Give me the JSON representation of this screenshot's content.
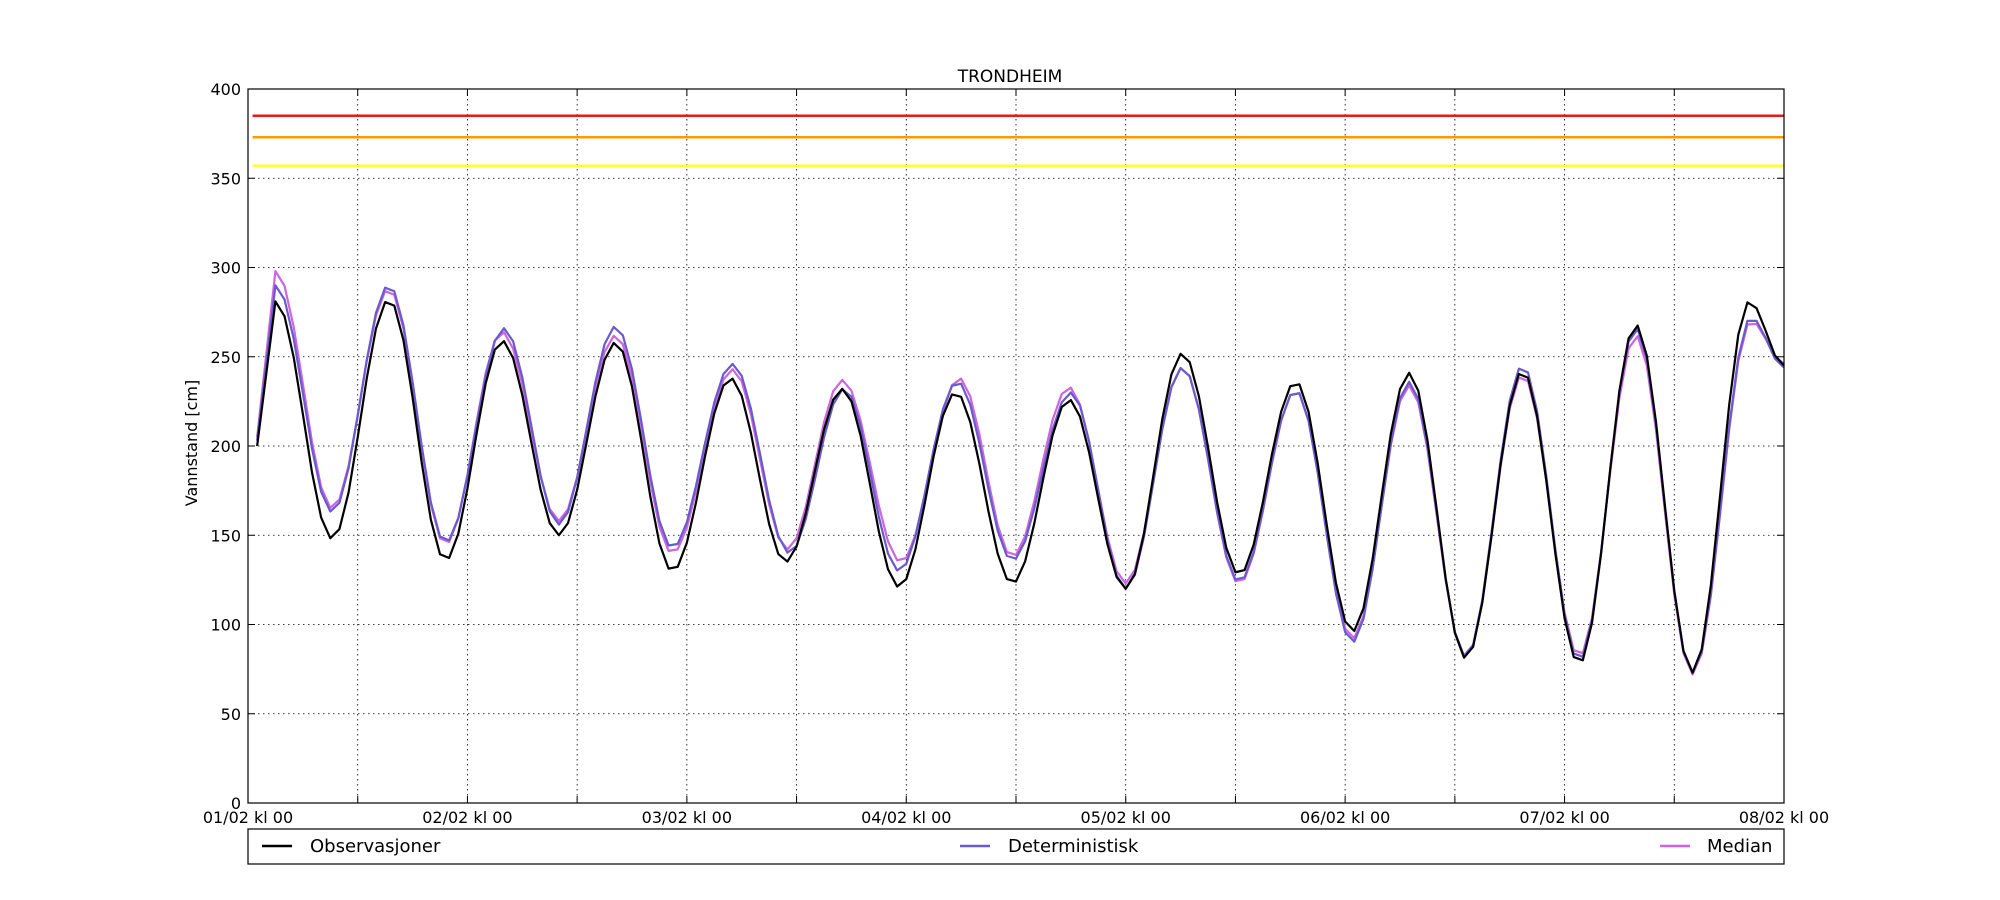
{
  "chart_data": {
    "type": "line",
    "title": "TRONDHEIM",
    "xlabel": "",
    "ylabel": "Vannstand [cm]",
    "xlim": [
      0,
      168
    ],
    "ylim": [
      0,
      400
    ],
    "grid": true,
    "legend_placement": "bottom",
    "x_ticks": [
      {
        "x": 0,
        "label": "01/02 kl 00"
      },
      {
        "x": 24,
        "label": "02/02 kl 00"
      },
      {
        "x": 48,
        "label": "03/02 kl 00"
      },
      {
        "x": 72,
        "label": "04/02 kl 00"
      },
      {
        "x": 96,
        "label": "05/02 kl 00"
      },
      {
        "x": 120,
        "label": "06/02 kl 00"
      },
      {
        "x": 144,
        "label": "07/02 kl 00"
      },
      {
        "x": 168,
        "label": "08/02 kl 00"
      }
    ],
    "x_minor_ticks": [
      12,
      36,
      60,
      84,
      108,
      132,
      156
    ],
    "y_ticks": [
      0,
      50,
      100,
      150,
      200,
      250,
      300,
      350,
      400
    ],
    "thresholds": [
      {
        "value": 385,
        "color": "#e41a1c"
      },
      {
        "value": 373,
        "color": "#ff9900"
      },
      {
        "value": 357,
        "color": "#ffff33"
      }
    ],
    "tide": {
      "x_start": 1,
      "x_end": 168,
      "step": 1,
      "period": 12.42,
      "observations_peaks": [
        {
          "x": 3.0,
          "y": 281
        },
        {
          "x": 9.2,
          "y": 148
        },
        {
          "x": 15.4,
          "y": 282
        },
        {
          "x": 21.6,
          "y": 136
        },
        {
          "x": 27.8,
          "y": 259
        },
        {
          "x": 34.0,
          "y": 150
        },
        {
          "x": 40.2,
          "y": 258
        },
        {
          "x": 46.4,
          "y": 130
        },
        {
          "x": 52.8,
          "y": 238
        },
        {
          "x": 58.8,
          "y": 135
        },
        {
          "x": 65.0,
          "y": 232
        },
        {
          "x": 71.2,
          "y": 121
        },
        {
          "x": 77.4,
          "y": 230
        },
        {
          "x": 83.6,
          "y": 123
        },
        {
          "x": 89.8,
          "y": 226
        },
        {
          "x": 96.0,
          "y": 120
        },
        {
          "x": 102.2,
          "y": 252
        },
        {
          "x": 108.4,
          "y": 128
        },
        {
          "x": 114.6,
          "y": 236
        },
        {
          "x": 120.8,
          "y": 96
        },
        {
          "x": 127.0,
          "y": 241
        },
        {
          "x": 133.2,
          "y": 81
        },
        {
          "x": 139.4,
          "y": 242
        },
        {
          "x": 145.6,
          "y": 78
        },
        {
          "x": 151.8,
          "y": 268
        },
        {
          "x": 158.0,
          "y": 73
        },
        {
          "x": 164.2,
          "y": 281
        }
      ],
      "deterministic_peaks": [
        {
          "x": 3.0,
          "y": 290
        },
        {
          "x": 9.2,
          "y": 163
        },
        {
          "x": 15.4,
          "y": 290
        },
        {
          "x": 21.6,
          "y": 146
        },
        {
          "x": 28.0,
          "y": 266
        },
        {
          "x": 34.0,
          "y": 156
        },
        {
          "x": 40.2,
          "y": 267
        },
        {
          "x": 46.4,
          "y": 143
        },
        {
          "x": 53.0,
          "y": 246
        },
        {
          "x": 59.2,
          "y": 140
        },
        {
          "x": 65.2,
          "y": 232
        },
        {
          "x": 71.2,
          "y": 130
        },
        {
          "x": 77.6,
          "y": 236
        },
        {
          "x": 83.6,
          "y": 136
        },
        {
          "x": 90.0,
          "y": 230
        },
        {
          "x": 96.0,
          "y": 120
        },
        {
          "x": 102.2,
          "y": 244
        },
        {
          "x": 108.4,
          "y": 124
        },
        {
          "x": 114.6,
          "y": 231
        },
        {
          "x": 120.8,
          "y": 90
        },
        {
          "x": 127.0,
          "y": 236
        },
        {
          "x": 133.2,
          "y": 82
        },
        {
          "x": 139.4,
          "y": 245
        },
        {
          "x": 145.6,
          "y": 80
        },
        {
          "x": 151.8,
          "y": 266
        },
        {
          "x": 158.0,
          "y": 73
        },
        {
          "x": 164.4,
          "y": 272
        }
      ],
      "median_peaks": [
        {
          "x": 3.0,
          "y": 298
        },
        {
          "x": 9.2,
          "y": 165
        },
        {
          "x": 15.4,
          "y": 288
        },
        {
          "x": 21.6,
          "y": 145
        },
        {
          "x": 27.8,
          "y": 264
        },
        {
          "x": 34.0,
          "y": 158
        },
        {
          "x": 40.2,
          "y": 262
        },
        {
          "x": 46.4,
          "y": 140
        },
        {
          "x": 53.0,
          "y": 243
        },
        {
          "x": 59.0,
          "y": 142
        },
        {
          "x": 65.0,
          "y": 237
        },
        {
          "x": 71.4,
          "y": 135
        },
        {
          "x": 77.8,
          "y": 238
        },
        {
          "x": 83.6,
          "y": 138
        },
        {
          "x": 89.8,
          "y": 233
        },
        {
          "x": 96.0,
          "y": 123
        },
        {
          "x": 102.2,
          "y": 244
        },
        {
          "x": 108.4,
          "y": 123
        },
        {
          "x": 114.6,
          "y": 231
        },
        {
          "x": 120.8,
          "y": 92
        },
        {
          "x": 127.0,
          "y": 234
        },
        {
          "x": 133.2,
          "y": 82
        },
        {
          "x": 139.4,
          "y": 240
        },
        {
          "x": 145.6,
          "y": 82
        },
        {
          "x": 151.8,
          "y": 262
        },
        {
          "x": 158.0,
          "y": 72
        },
        {
          "x": 164.4,
          "y": 270
        }
      ]
    },
    "series": [
      {
        "name": "Observasjoner",
        "color": "#000000",
        "key": "observations_peaks",
        "start_y": 200,
        "end_y": 245
      },
      {
        "name": "Deterministisk",
        "color": "#6a5acd",
        "key": "deterministic_peaks",
        "start_y": 203,
        "end_y": 244
      },
      {
        "name": "Median",
        "color": "#cc66dd",
        "key": "median_peaks",
        "start_y": 205,
        "end_y": 246
      }
    ]
  }
}
